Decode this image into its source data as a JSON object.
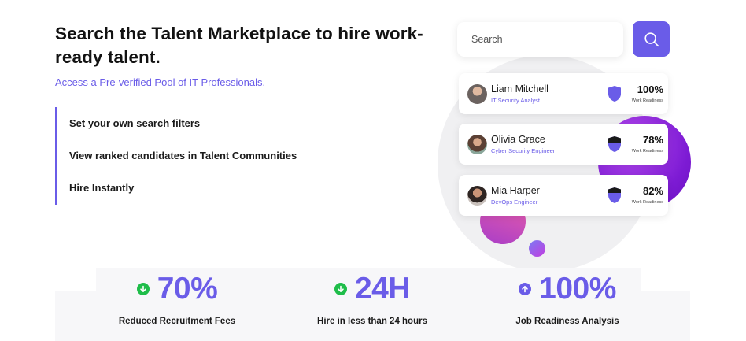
{
  "hero": {
    "title": "Search the Talent Marketplace to hire work-ready talent.",
    "subtitle": "Access a Pre-verified Pool of IT Professionals.",
    "features": [
      "Set your own search filters",
      "View ranked candidates in Talent Communities",
      "Hire Instantly"
    ]
  },
  "search": {
    "placeholder": "Search",
    "button_icon": "search-icon"
  },
  "candidates": [
    {
      "name": "Liam Mitchell",
      "role": "IT Security Analyst",
      "readiness": "100%",
      "readiness_label": "Work Readiness",
      "badge_color": "#6a5ce8"
    },
    {
      "name": "Olivia Grace",
      "role": "Cyber Security Engineer",
      "readiness": "78%",
      "readiness_label": "Work Readiness",
      "badge_color": "#1a1a1a"
    },
    {
      "name": "Mia Harper",
      "role": "DevOps Engineer",
      "readiness": "82%",
      "readiness_label": "Work Readiness",
      "badge_color": "#1a1a1a"
    }
  ],
  "stats": [
    {
      "value": "70%",
      "label": "Reduced Recruitment Fees",
      "icon": "arrow-down-circle-icon",
      "icon_color": "#1fbd4a"
    },
    {
      "value": "24H",
      "label": "Hire in less than 24 hours",
      "icon": "arrow-down-circle-icon",
      "icon_color": "#1fbd4a"
    },
    {
      "value": "100%",
      "label": "Job Readiness Analysis",
      "icon": "arrow-up-circle-icon",
      "icon_color": "#6a5ce8"
    }
  ],
  "colors": {
    "accent": "#6a5ce8",
    "positive": "#1fbd4a",
    "text": "#121212"
  }
}
